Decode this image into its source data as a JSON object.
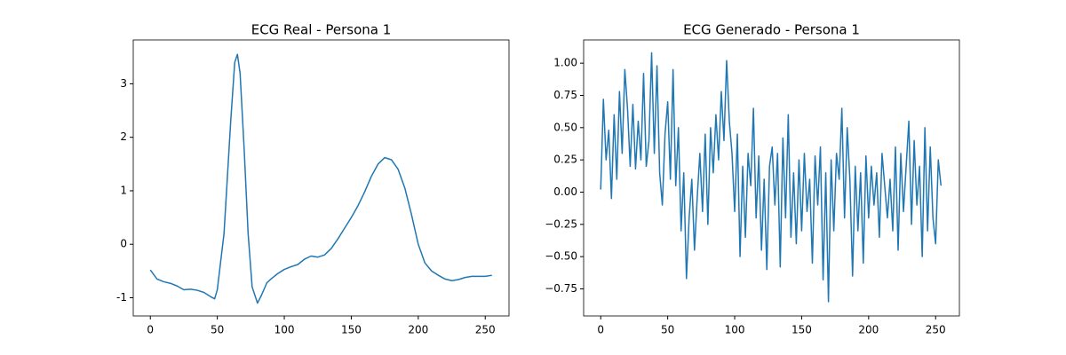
{
  "chart_data": [
    {
      "type": "line",
      "title": "ECG Real - Persona 1",
      "series": [
        {
          "color": "#1f77b4",
          "x": [
            0,
            5,
            10,
            15,
            20,
            25,
            30,
            35,
            40,
            45,
            48,
            50,
            55,
            60,
            63,
            65,
            67,
            70,
            73,
            76,
            80,
            83,
            87,
            90,
            95,
            100,
            105,
            110,
            115,
            120,
            125,
            130,
            135,
            140,
            145,
            150,
            155,
            160,
            165,
            170,
            175,
            180,
            185,
            190,
            195,
            200,
            205,
            210,
            215,
            220,
            225,
            230,
            235,
            240,
            245,
            250,
            255
          ],
          "values": [
            -0.48,
            -0.65,
            -0.7,
            -0.73,
            -0.78,
            -0.85,
            -0.84,
            -0.86,
            -0.9,
            -0.98,
            -1.02,
            -0.85,
            0.2,
            2.3,
            3.4,
            3.55,
            3.2,
            1.8,
            0.2,
            -0.8,
            -1.1,
            -0.95,
            -0.72,
            -0.65,
            -0.55,
            -0.47,
            -0.42,
            -0.38,
            -0.28,
            -0.22,
            -0.24,
            -0.2,
            -0.08,
            0.1,
            0.3,
            0.5,
            0.72,
            0.98,
            1.27,
            1.5,
            1.62,
            1.58,
            1.4,
            1.05,
            0.55,
            0.0,
            -0.35,
            -0.5,
            -0.58,
            -0.65,
            -0.68,
            -0.66,
            -0.62,
            -0.6,
            -0.6,
            -0.6,
            -0.58
          ]
        }
      ],
      "xlim": [
        -12.75,
        267.75
      ],
      "xticks": [
        0,
        50,
        100,
        150,
        200,
        250
      ],
      "ylim": [
        -1.34,
        3.82
      ],
      "yticks": [
        -1,
        0,
        1,
        2,
        3
      ]
    },
    {
      "type": "line",
      "title": "ECG Generado - Persona 1",
      "series": [
        {
          "color": "#1f77b4",
          "x": [
            0,
            2,
            4,
            6,
            8,
            10,
            12,
            14,
            16,
            18,
            20,
            22,
            24,
            26,
            28,
            30,
            32,
            34,
            36,
            38,
            40,
            42,
            44,
            46,
            48,
            50,
            52,
            54,
            56,
            58,
            60,
            62,
            64,
            66,
            68,
            70,
            72,
            74,
            76,
            78,
            80,
            82,
            84,
            86,
            88,
            90,
            92,
            94,
            96,
            98,
            100,
            102,
            104,
            106,
            108,
            110,
            112,
            114,
            116,
            118,
            120,
            122,
            124,
            126,
            128,
            130,
            132,
            134,
            136,
            138,
            140,
            142,
            144,
            146,
            148,
            150,
            152,
            154,
            156,
            158,
            160,
            162,
            164,
            166,
            168,
            170,
            172,
            174,
            176,
            178,
            180,
            182,
            184,
            186,
            188,
            190,
            192,
            194,
            196,
            198,
            200,
            202,
            204,
            206,
            208,
            210,
            212,
            214,
            216,
            218,
            220,
            222,
            224,
            226,
            228,
            230,
            232,
            234,
            236,
            238,
            240,
            242,
            244,
            246,
            248,
            250,
            252,
            254
          ],
          "values": [
            0.02,
            0.72,
            0.25,
            0.48,
            -0.05,
            0.6,
            0.1,
            0.78,
            0.3,
            0.95,
            0.65,
            0.2,
            0.68,
            0.18,
            0.55,
            0.25,
            0.92,
            0.2,
            0.4,
            1.08,
            0.3,
            0.98,
            0.15,
            -0.1,
            0.45,
            0.7,
            0.1,
            0.95,
            0.05,
            0.5,
            -0.3,
            0.15,
            -0.67,
            -0.2,
            0.1,
            -0.45,
            -0.05,
            0.3,
            -0.15,
            0.45,
            -0.25,
            0.5,
            0.15,
            0.6,
            0.25,
            0.78,
            0.4,
            1.02,
            0.55,
            0.3,
            -0.15,
            0.45,
            -0.5,
            0.2,
            -0.35,
            0.3,
            0.05,
            0.65,
            -0.2,
            0.28,
            -0.45,
            0.1,
            -0.6,
            0.2,
            0.35,
            -0.1,
            0.3,
            -0.58,
            0.42,
            -0.2,
            0.6,
            -0.35,
            0.15,
            -0.4,
            0.25,
            -0.3,
            0.3,
            -0.15,
            0.1,
            -0.55,
            0.28,
            -0.1,
            0.35,
            -0.68,
            0.15,
            -0.85,
            0.25,
            -0.3,
            0.3,
            0.1,
            0.65,
            -0.2,
            0.5,
            0.1,
            -0.65,
            0.2,
            -0.3,
            0.15,
            -0.55,
            0.28,
            -0.2,
            0.2,
            -0.1,
            0.15,
            -0.35,
            0.3,
            0.05,
            -0.2,
            0.1,
            -0.3,
            0.35,
            -0.45,
            0.3,
            -0.15,
            0.2,
            0.55,
            -0.25,
            0.4,
            -0.1,
            0.2,
            -0.5,
            0.5,
            -0.3,
            0.35,
            -0.2,
            -0.4,
            0.25,
            0.05
          ]
        }
      ],
      "xlim": [
        -12.75,
        267.75
      ],
      "xticks": [
        0,
        50,
        100,
        150,
        200,
        250
      ],
      "ylim": [
        -0.96,
        1.18
      ],
      "yticks": [
        {
          "value": -0.75,
          "label": "−0.75"
        },
        {
          "value": -0.5,
          "label": "−0.50"
        },
        {
          "value": -0.25,
          "label": "−0.25"
        },
        {
          "value": 0,
          "label": "0.00"
        },
        {
          "value": 0.25,
          "label": "0.25"
        },
        {
          "value": 0.5,
          "label": "0.50"
        },
        {
          "value": 0.75,
          "label": "0.75"
        },
        {
          "value": 1,
          "label": "1.00"
        }
      ]
    }
  ]
}
